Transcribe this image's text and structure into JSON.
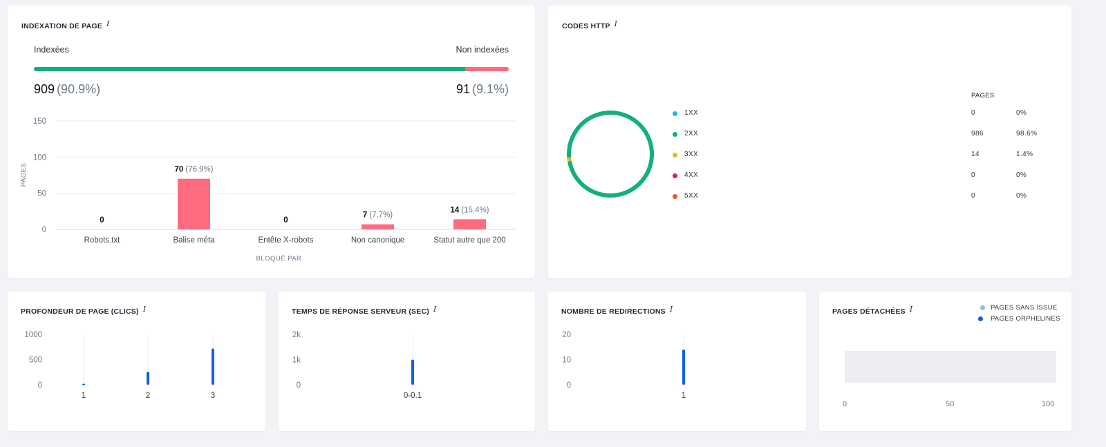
{
  "indexation": {
    "title": "INDEXATION DE PAGE",
    "info": "i",
    "indexed_label": "Indexées",
    "non_indexed_label": "Non indexées",
    "indexed_count": "909",
    "indexed_pct": "(90.9%)",
    "non_indexed_count": "91",
    "non_indexed_pct": "(9.1%)",
    "indexed_fraction": 0.909,
    "colors": {
      "indexed": "#12b07a",
      "non_indexed": "#ff6b7f"
    }
  },
  "blocked_chart": {
    "type": "bar",
    "ylabel": "PAGES",
    "xlabel": "BLOQUÉ PAR",
    "ylim": [
      0,
      150
    ],
    "yticks": [
      0,
      50,
      100,
      150
    ],
    "categories": [
      "Robots.txt",
      "Balise méta",
      "Entête X-robots",
      "Non canonique",
      "Statut autre que 200"
    ],
    "values": [
      0,
      70,
      0,
      7,
      14
    ],
    "value_labels": [
      "0",
      "70",
      "0",
      "7",
      "14"
    ],
    "pct_labels": [
      "",
      "(76.9%)",
      "",
      "(7.7%)",
      "(15.4%)"
    ],
    "color": "#ff6b7f"
  },
  "http_codes": {
    "title": "CODES HTTP",
    "info": "i",
    "pages_header": "PAGES",
    "rows": [
      {
        "code": "1XX",
        "count": "0",
        "pct": "0%",
        "color": "#1eb7e0",
        "value": 0
      },
      {
        "code": "2XX",
        "count": "986",
        "pct": "98.6%",
        "color": "#12b07a",
        "value": 986
      },
      {
        "code": "3XX",
        "count": "14",
        "pct": "1.4%",
        "color": "#f2b525",
        "value": 14
      },
      {
        "code": "4XX",
        "count": "0",
        "pct": "0%",
        "color": "#e0195e",
        "value": 0
      },
      {
        "code": "5XX",
        "count": "0",
        "pct": "0%",
        "color": "#f0592a",
        "value": 0
      }
    ]
  },
  "depth": {
    "title": "PROFONDEUR DE PAGE (CLICS)",
    "info": "i",
    "chart_data": {
      "type": "bar",
      "ylim": [
        0,
        1000
      ],
      "yticks": [
        "0",
        "500",
        "1000"
      ],
      "categories": [
        "1",
        "2",
        "3"
      ],
      "values": [
        20,
        260,
        720
      ],
      "color": "#0f5fe8"
    }
  },
  "response_time": {
    "title": "TEMPS DE RÉPONSE SERVEUR (SEC)",
    "info": "i",
    "chart_data": {
      "type": "bar",
      "ylim": [
        0,
        2000
      ],
      "yticks": [
        "0",
        "1k",
        "2k"
      ],
      "categories": [
        "0-0.1"
      ],
      "values": [
        1000
      ],
      "color": "#0f5fe8"
    }
  },
  "redirects": {
    "title": "NOMBRE DE REDIRECTIONS",
    "info": "i",
    "chart_data": {
      "type": "bar",
      "ylim": [
        0,
        20
      ],
      "yticks": [
        "0",
        "10",
        "20"
      ],
      "categories": [
        "1"
      ],
      "values": [
        14
      ],
      "color": "#0f5fe8"
    }
  },
  "detached": {
    "title": "PAGES DÉTACHÉES",
    "info": "i",
    "legend": [
      {
        "label": "PAGES SANS ISSUE",
        "color": "#9db5ec"
      },
      {
        "label": "PAGES ORPHELINES",
        "color": "#0f5fe8"
      }
    ],
    "xticks": [
      "0",
      "50",
      "100"
    ],
    "bar_color": "#eceef1"
  }
}
